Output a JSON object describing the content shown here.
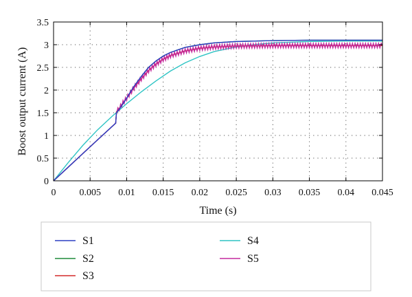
{
  "chart_data": {
    "type": "line",
    "title": "",
    "xlabel": "Time (s)",
    "ylabel": "Boost output current (A)",
    "xlim": [
      0,
      0.045
    ],
    "ylim": [
      0,
      3.5
    ],
    "xticks": [
      "0",
      "0.005",
      "0.01",
      "0.015",
      "0.02",
      "0.025",
      "0.03",
      "0.035",
      "0.04",
      "0.045"
    ],
    "yticks": [
      "0",
      "0.5",
      "1",
      "1.5",
      "2",
      "2.5",
      "3",
      "3.5"
    ],
    "grid": true,
    "legend_position": "bottom",
    "series": [
      {
        "name": "S1",
        "color": "#2b3fc4",
        "x": [
          0,
          0.002,
          0.004,
          0.006,
          0.0085,
          0.0086,
          0.009,
          0.0095,
          0.01,
          0.011,
          0.012,
          0.013,
          0.014,
          0.015,
          0.016,
          0.018,
          0.02,
          0.022,
          0.025,
          0.03,
          0.035,
          0.04,
          0.045
        ],
        "y": [
          0,
          0.3,
          0.6,
          0.9,
          1.27,
          1.5,
          1.58,
          1.7,
          1.82,
          2.08,
          2.3,
          2.5,
          2.64,
          2.75,
          2.83,
          2.94,
          3.0,
          3.04,
          3.07,
          3.09,
          3.1,
          3.1,
          3.1
        ]
      },
      {
        "name": "S2",
        "color": "#1f8a3a",
        "x": [
          0,
          0.002,
          0.004,
          0.006,
          0.0085,
          0.0086,
          0.009,
          0.0095,
          0.01,
          0.011,
          0.012,
          0.013,
          0.014,
          0.015,
          0.016,
          0.018,
          0.02,
          0.022,
          0.025,
          0.03,
          0.035,
          0.04,
          0.045
        ],
        "y": [
          0,
          0.3,
          0.6,
          0.9,
          1.27,
          1.5,
          1.58,
          1.7,
          1.82,
          2.08,
          2.3,
          2.5,
          2.64,
          2.75,
          2.83,
          2.94,
          3.0,
          3.04,
          3.07,
          3.09,
          3.1,
          3.1,
          3.1
        ]
      },
      {
        "name": "S3",
        "color": "#d42a2a",
        "x": [
          0,
          0.002,
          0.004,
          0.006,
          0.0085,
          0.0086,
          0.009,
          0.0095,
          0.01,
          0.011,
          0.012,
          0.013,
          0.014,
          0.015,
          0.016,
          0.018,
          0.02,
          0.022,
          0.025,
          0.03,
          0.035,
          0.04,
          0.045
        ],
        "y": [
          0,
          0.3,
          0.6,
          0.9,
          1.27,
          1.52,
          1.6,
          1.72,
          1.82,
          2.05,
          2.25,
          2.43,
          2.57,
          2.68,
          2.76,
          2.86,
          2.92,
          2.95,
          2.97,
          2.98,
          2.98,
          2.98,
          2.98
        ]
      },
      {
        "name": "S4",
        "color": "#2ec4c4",
        "x": [
          0,
          0.002,
          0.004,
          0.006,
          0.008,
          0.01,
          0.012,
          0.014,
          0.016,
          0.018,
          0.02,
          0.022,
          0.025,
          0.028,
          0.03,
          0.035,
          0.04,
          0.045
        ],
        "y": [
          0,
          0.4,
          0.78,
          1.12,
          1.42,
          1.7,
          1.96,
          2.2,
          2.42,
          2.6,
          2.74,
          2.85,
          2.95,
          3.01,
          3.04,
          3.07,
          3.08,
          3.08
        ]
      },
      {
        "name": "S5",
        "color": "#c42a9e",
        "x": [
          0,
          0.002,
          0.004,
          0.006,
          0.0085,
          0.0086,
          0.009,
          0.0095,
          0.01,
          0.011,
          0.012,
          0.013,
          0.014,
          0.015,
          0.016,
          0.018,
          0.02,
          0.022,
          0.025,
          0.03,
          0.035,
          0.04,
          0.045
        ],
        "y": [
          0,
          0.3,
          0.6,
          0.9,
          1.27,
          1.52,
          1.6,
          1.72,
          1.82,
          2.05,
          2.25,
          2.43,
          2.57,
          2.68,
          2.76,
          2.86,
          2.92,
          2.95,
          2.97,
          2.98,
          2.98,
          2.98,
          2.98
        ],
        "ripple": 0.05
      }
    ]
  }
}
